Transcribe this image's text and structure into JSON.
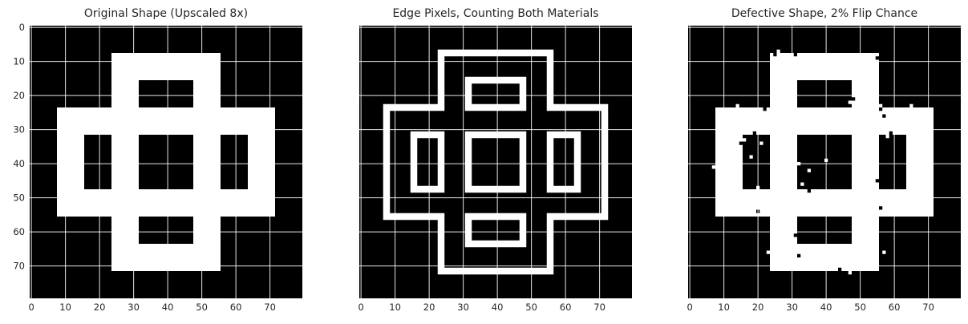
{
  "chart_data": [
    {
      "type": "heatmap",
      "title": "Original Shape (Upscaled 8x)",
      "colormap": {
        "0": "#000000",
        "1": "#ffffff"
      },
      "size": [
        80,
        80
      ],
      "xlim": [
        0,
        80
      ],
      "ylim": [
        0,
        80
      ],
      "xticks": [
        0,
        10,
        20,
        30,
        40,
        50,
        60,
        70
      ],
      "yticks": [
        0,
        10,
        20,
        30,
        40,
        50,
        60,
        70
      ],
      "show_yticklabels": true,
      "grid": true,
      "white_rects": [
        [
          24,
          8,
          56,
          72
        ],
        [
          8,
          24,
          72,
          56
        ]
      ],
      "black_rects": [
        [
          32,
          16,
          48,
          24
        ],
        [
          32,
          56,
          48,
          64
        ],
        [
          16,
          32,
          24,
          48
        ],
        [
          32,
          32,
          48,
          48
        ],
        [
          56,
          32,
          64,
          48
        ]
      ]
    },
    {
      "type": "heatmap",
      "title": "Edge Pixels, Counting Both Materials",
      "colormap": {
        "0": "#000000",
        "1": "#ffffff"
      },
      "size": [
        80,
        80
      ],
      "xlim": [
        0,
        80
      ],
      "ylim": [
        0,
        80
      ],
      "xticks": [
        0,
        10,
        20,
        30,
        40,
        50,
        60,
        70
      ],
      "yticks": [
        0,
        10,
        20,
        30,
        40,
        50,
        60,
        70
      ],
      "show_yticklabels": false,
      "grid": true,
      "outlines": [
        [
          [
            24,
            8
          ],
          [
            56,
            8
          ],
          [
            56,
            24
          ],
          [
            72,
            24
          ],
          [
            72,
            56
          ],
          [
            56,
            56
          ],
          [
            56,
            72
          ],
          [
            24,
            72
          ],
          [
            24,
            56
          ],
          [
            8,
            56
          ],
          [
            8,
            24
          ],
          [
            24,
            24
          ]
        ],
        [
          [
            32,
            16
          ],
          [
            48,
            16
          ],
          [
            48,
            24
          ],
          [
            32,
            24
          ]
        ],
        [
          [
            32,
            56
          ],
          [
            48,
            56
          ],
          [
            48,
            64
          ],
          [
            32,
            64
          ]
        ],
        [
          [
            16,
            32
          ],
          [
            24,
            32
          ],
          [
            24,
            48
          ],
          [
            16,
            48
          ]
        ],
        [
          [
            32,
            32
          ],
          [
            48,
            32
          ],
          [
            48,
            48
          ],
          [
            32,
            48
          ]
        ],
        [
          [
            56,
            32
          ],
          [
            64,
            32
          ],
          [
            64,
            48
          ],
          [
            56,
            48
          ]
        ]
      ]
    },
    {
      "type": "heatmap",
      "title": "Defective Shape, 2% Flip Chance",
      "colormap": {
        "0": "#000000",
        "1": "#ffffff"
      },
      "size": [
        80,
        80
      ],
      "xlim": [
        0,
        80
      ],
      "ylim": [
        0,
        80
      ],
      "xticks": [
        0,
        10,
        20,
        30,
        40,
        50,
        60,
        70
      ],
      "yticks": [
        0,
        10,
        20,
        30,
        40,
        50,
        60,
        70
      ],
      "show_yticklabels": false,
      "grid": true,
      "white_rects": [
        [
          24,
          8,
          56,
          72
        ],
        [
          8,
          24,
          72,
          56
        ]
      ],
      "black_rects": [
        [
          32,
          16,
          48,
          24
        ],
        [
          32,
          56,
          48,
          64
        ],
        [
          16,
          32,
          24,
          48
        ],
        [
          32,
          32,
          48,
          48
        ],
        [
          56,
          32,
          64,
          48
        ]
      ],
      "flipped_pixels": [
        [
          25,
          8
        ],
        [
          26,
          7
        ],
        [
          31,
          8
        ],
        [
          55,
          9
        ],
        [
          48,
          21
        ],
        [
          47,
          22
        ],
        [
          56,
          23
        ],
        [
          22,
          24
        ],
        [
          14,
          23
        ],
        [
          65,
          23
        ],
        [
          56,
          24
        ],
        [
          57,
          26
        ],
        [
          19,
          31
        ],
        [
          15,
          34
        ],
        [
          16,
          33
        ],
        [
          59,
          31
        ],
        [
          58,
          32
        ],
        [
          21,
          34
        ],
        [
          18,
          38
        ],
        [
          32,
          40
        ],
        [
          7,
          41
        ],
        [
          35,
          42
        ],
        [
          55,
          45
        ],
        [
          33,
          46
        ],
        [
          20,
          47
        ],
        [
          35,
          48
        ],
        [
          20,
          54
        ],
        [
          56,
          53
        ],
        [
          31,
          61
        ],
        [
          23,
          66
        ],
        [
          32,
          67
        ],
        [
          57,
          66
        ],
        [
          47,
          72
        ],
        [
          44,
          71
        ],
        [
          40,
          39
        ]
      ]
    }
  ]
}
